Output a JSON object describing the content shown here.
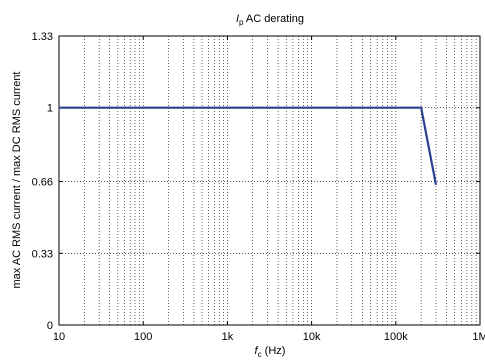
{
  "chart_data": {
    "type": "line",
    "title": {
      "symbol": "I",
      "subscript": "p",
      "text": " AC derating"
    },
    "xlabel": {
      "symbol": "f",
      "subscript": "c",
      "text": " (Hz)"
    },
    "ylabel": "max AC RMS current / max DC RMS current",
    "x_scale": "log",
    "xlim": [
      10,
      1000000
    ],
    "ylim": [
      0,
      1.33
    ],
    "x_ticks": [
      {
        "value": 10,
        "label": "10"
      },
      {
        "value": 100,
        "label": "100"
      },
      {
        "value": 1000,
        "label": "1k"
      },
      {
        "value": 10000,
        "label": "10k"
      },
      {
        "value": 100000,
        "label": "100k"
      },
      {
        "value": 1000000,
        "label": "1M"
      }
    ],
    "y_ticks": [
      {
        "value": 0,
        "label": "0"
      },
      {
        "value": 0.33,
        "label": "0.33"
      },
      {
        "value": 0.66,
        "label": "0.66"
      },
      {
        "value": 1,
        "label": "1"
      },
      {
        "value": 1.33,
        "label": "1.33"
      }
    ],
    "grid": true,
    "series": [
      {
        "color": "#2b3f8f",
        "x": [
          10,
          200000,
          300000
        ],
        "y": [
          1.0,
          1.0,
          0.645
        ]
      }
    ]
  }
}
